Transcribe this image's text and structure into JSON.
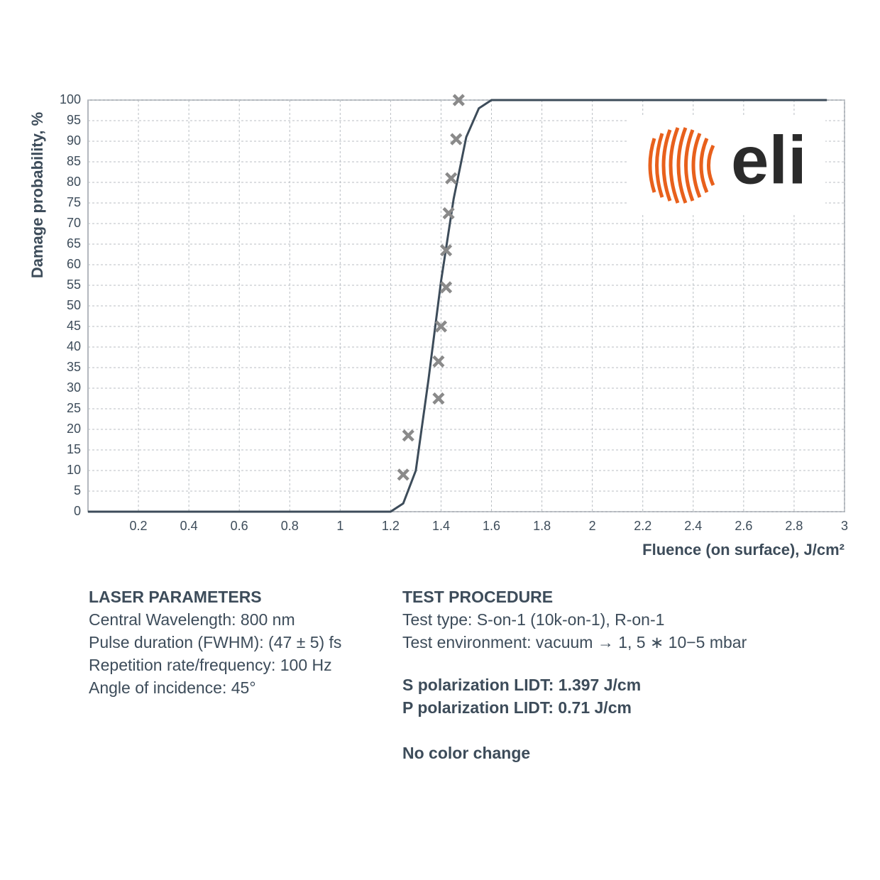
{
  "chart_data": {
    "type": "scatter",
    "xlabel": "Fluence (on surface), J/cm²",
    "ylabel": "Damage probability, %",
    "xlim": [
      0,
      3
    ],
    "ylim": [
      0,
      100
    ],
    "xticks": [
      0.2,
      0.4,
      0.6,
      0.8,
      1,
      1.2,
      1.4,
      1.6,
      1.8,
      2,
      2.2,
      2.4,
      2.6,
      2.8,
      3
    ],
    "yticks": [
      0,
      5,
      10,
      15,
      20,
      25,
      30,
      35,
      40,
      45,
      50,
      55,
      60,
      65,
      70,
      75,
      80,
      85,
      90,
      95,
      100
    ],
    "grid": true,
    "points": {
      "color": "#8a8a8a",
      "x": [
        1.25,
        1.27,
        1.39,
        1.39,
        1.4,
        1.42,
        1.42,
        1.43,
        1.44,
        1.46,
        1.47
      ],
      "y": [
        9,
        18.5,
        27.5,
        36.5,
        45,
        54.5,
        63.5,
        72.5,
        81,
        90.5,
        100
      ]
    },
    "fit": {
      "color": "#3d4c5a",
      "x": [
        0,
        1.2,
        1.25,
        1.3,
        1.35,
        1.4,
        1.45,
        1.5,
        1.55,
        1.6,
        2.93
      ],
      "y": [
        0,
        0,
        2,
        10,
        32,
        56,
        76,
        91,
        98,
        100,
        100
      ]
    },
    "logo": "eli"
  },
  "laser_parameters": {
    "title": "LASER PARAMETERS",
    "lines": [
      "Central Wavelength: 800 nm",
      "Pulse duration (FWHM): (47 ± 5) fs",
      "Repetition rate/frequency: 100 Hz",
      "Angle of incidence: 45°"
    ]
  },
  "test_procedure": {
    "title": "TEST PROCEDURE",
    "lines": [
      "Test type: S-on-1 (10k-on-1), R-on-1",
      "Test environment: vacuum → 1, 5 ∗ 10−5 mbar"
    ],
    "results": [
      "S polarization LIDT: 1.397 J/cm",
      "P polarization LIDT: 0.71 J/cm"
    ],
    "note": "No color change"
  }
}
